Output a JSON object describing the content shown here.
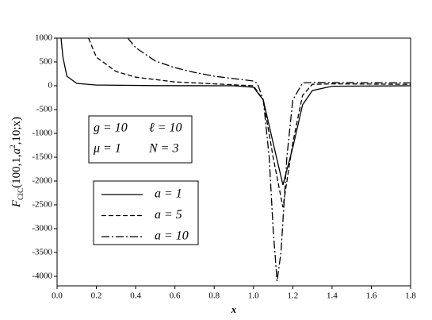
{
  "chart_data": {
    "type": "line",
    "xlabel": "x",
    "ylabel": {
      "main": "F",
      "sub": "CIC",
      "open": "(100,1,",
      "var": "a",
      "sup": "2",
      "close": ",10;x)"
    },
    "annotations": [
      "g = 10",
      "ℓ = 10",
      "μ = 1",
      "N = 3"
    ],
    "xlim": [
      0,
      1.8
    ],
    "xticks": [
      {
        "value": 0,
        "label": "0.0"
      },
      {
        "value": 0.2,
        "label": "0.2"
      },
      {
        "value": 0.4,
        "label": "0.4"
      },
      {
        "value": 0.6,
        "label": "0.6"
      },
      {
        "value": 0.8,
        "label": "0.8"
      },
      {
        "value": 1,
        "label": "1.0"
      },
      {
        "value": 1.2,
        "label": "1.2"
      },
      {
        "value": 1.4,
        "label": "1.4"
      },
      {
        "value": 1.6,
        "label": "1.6"
      },
      {
        "value": 1.8,
        "label": "1.8"
      }
    ],
    "ylim": [
      -4200,
      1000
    ],
    "yticks": [
      1000,
      500,
      0,
      -500,
      -1000,
      -1500,
      -2000,
      -2500,
      -3000,
      -3500,
      -4000
    ],
    "legend": "lower-left",
    "series": [
      {
        "name": "a = 1",
        "color": "#000000",
        "dash": "solid",
        "x": [
          0.02,
          0.03,
          0.05,
          0.1,
          0.2,
          0.5,
          0.9,
          1.0,
          1.05,
          1.1,
          1.15,
          1.2,
          1.25,
          1.3,
          1.4,
          1.8
        ],
        "values": [
          1000,
          600,
          200,
          50,
          15,
          3,
          0,
          -30,
          -300,
          -1200,
          -2080,
          -1300,
          -400,
          -100,
          -10,
          0
        ]
      },
      {
        "name": "a = 5",
        "color": "#000000",
        "dash": "dashed",
        "x": [
          0.16,
          0.2,
          0.3,
          0.4,
          0.6,
          0.8,
          1.0,
          1.05,
          1.1,
          1.15,
          1.2,
          1.25,
          1.3,
          1.4,
          1.8
        ],
        "values": [
          1000,
          600,
          300,
          180,
          80,
          40,
          0,
          -300,
          -1500,
          -2550,
          -1200,
          -200,
          30,
          40,
          30
        ]
      },
      {
        "name": "a = 10",
        "color": "#000000",
        "dash": "dashdot",
        "x": [
          0.36,
          0.4,
          0.5,
          0.6,
          0.7,
          0.8,
          0.9,
          1.0,
          1.02,
          1.05,
          1.08,
          1.1,
          1.12,
          1.14,
          1.17,
          1.2,
          1.25,
          1.3,
          1.8
        ],
        "values": [
          1000,
          800,
          520,
          380,
          280,
          200,
          150,
          100,
          50,
          -300,
          -1500,
          -3000,
          -4100,
          -3500,
          -1500,
          -300,
          60,
          70,
          60
        ]
      }
    ]
  }
}
